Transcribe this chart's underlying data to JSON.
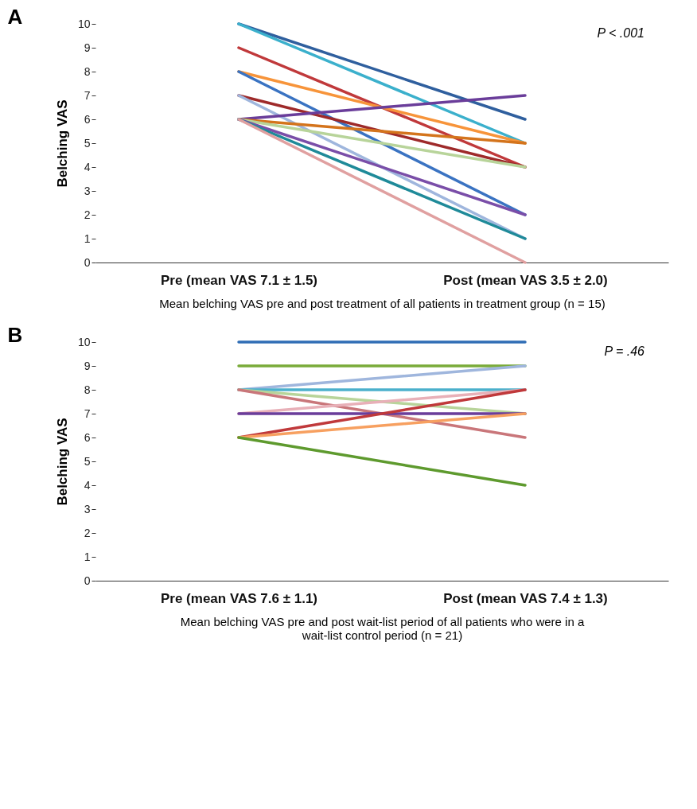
{
  "chart_data": [
    {
      "type": "line",
      "title": "A",
      "ylabel": "Belching VAS",
      "xlabel": "Mean belching VAS pre and post treatment of all patients in treatment group (n = 15)",
      "annotations": [
        "P < .001"
      ],
      "categories": [
        "Pre (mean VAS 7.1 ± 1.5)",
        "Post (mean VAS 3.5 ± 2.0)"
      ],
      "ylim": [
        0,
        10
      ],
      "yticks": [
        0,
        1,
        2,
        3,
        4,
        5,
        6,
        7,
        8,
        9,
        10
      ],
      "grid": false,
      "marker": "none",
      "series": [
        {
          "color": "#2f5f9e",
          "values": [
            10,
            6
          ]
        },
        {
          "color": "#3bb0cc",
          "values": [
            10,
            5
          ]
        },
        {
          "color": "#c0393b",
          "values": [
            9,
            4
          ]
        },
        {
          "color": "#f7943a",
          "values": [
            8,
            5
          ]
        },
        {
          "color": "#3a73c2",
          "values": [
            8,
            2
          ]
        },
        {
          "color": "#9e2a2a",
          "values": [
            7,
            4
          ]
        },
        {
          "color": "#9fb6dd",
          "values": [
            7,
            1
          ]
        },
        {
          "color": "#6a3d9a",
          "values": [
            6,
            7
          ]
        },
        {
          "color": "#d4741c",
          "values": [
            6,
            5
          ]
        },
        {
          "color": "#b8d49a",
          "values": [
            6,
            4
          ]
        },
        {
          "color": "#7a4ea8",
          "values": [
            6,
            2
          ]
        },
        {
          "color": "#1f8a99",
          "values": [
            6,
            1
          ]
        },
        {
          "color": "#e0a0a0",
          "values": [
            6,
            0
          ]
        }
      ]
    },
    {
      "type": "line",
      "title": "B",
      "ylabel": "Belching VAS",
      "xlabel": "Mean belching VAS pre and post wait-list period of all patients who were in a wait-list control period (n = 21)",
      "annotations": [
        "P = .46"
      ],
      "categories": [
        "Pre (mean VAS 7.6 ± 1.1)",
        "Post (mean VAS 7.4 ± 1.3)"
      ],
      "ylim": [
        0,
        10
      ],
      "yticks": [
        0,
        1,
        2,
        3,
        4,
        5,
        6,
        7,
        8,
        9,
        10
      ],
      "grid": false,
      "marker": "none",
      "series": [
        {
          "color": "#2f6db5",
          "values": [
            10,
            10
          ]
        },
        {
          "color": "#7aab3a",
          "values": [
            9,
            9
          ]
        },
        {
          "color": "#9fb6dd",
          "values": [
            8,
            9
          ]
        },
        {
          "color": "#4bb0cc",
          "values": [
            8,
            8
          ]
        },
        {
          "color": "#b8d49a",
          "values": [
            8,
            7
          ]
        },
        {
          "color": "#c9767a",
          "values": [
            8,
            6
          ]
        },
        {
          "color": "#e8b0b8",
          "values": [
            7,
            8
          ]
        },
        {
          "color": "#6a3d9a",
          "values": [
            7,
            7
          ]
        },
        {
          "color": "#c0393b",
          "values": [
            6,
            8
          ]
        },
        {
          "color": "#f7a060",
          "values": [
            6,
            7
          ]
        },
        {
          "color": "#5e9a2e",
          "values": [
            6,
            4
          ]
        }
      ]
    }
  ]
}
